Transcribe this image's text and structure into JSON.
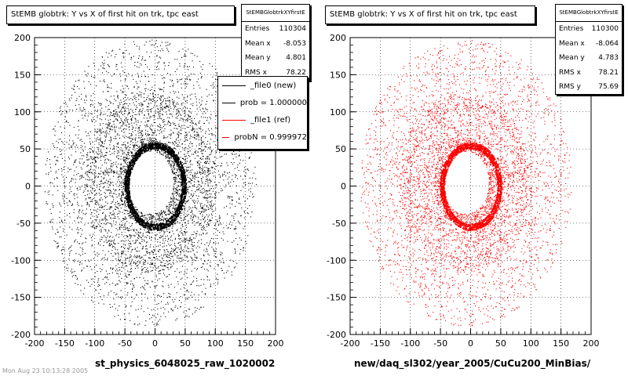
{
  "panels": [
    {
      "title": "StEMB globtrk: Y vs X of first hit on trk, tpc east",
      "stats": {
        "name": "StEMBGlobtrkXYfirstE",
        "rows": [
          {
            "label": "Entries",
            "value": "110304"
          },
          {
            "label": "Mean x",
            "value": "-8.053"
          },
          {
            "label": "Mean y",
            "value": "4.801"
          },
          {
            "label": "RMS x",
            "value": "78.22"
          }
        ]
      },
      "legend": [
        {
          "label": "_file0 (new)",
          "color": "#000000"
        },
        {
          "label": "prob = 1.000000",
          "color": "#000000"
        },
        {
          "label": "_file1 (ref)",
          "color": "#ff0000"
        },
        {
          "label": "probN = 0.999972",
          "color": "#ff0000"
        }
      ],
      "xaxis_title": "st_physics_6048025_raw_1020002",
      "color": "#000000"
    },
    {
      "title": "StEMB globtrk: Y vs X of first hit on trk, tpc east",
      "stats": {
        "name": "StEMBGlobtrkXYfirstE",
        "rows": [
          {
            "label": "Entries",
            "value": "110300"
          },
          {
            "label": "Mean x",
            "value": "-8.064"
          },
          {
            "label": "Mean y",
            "value": "4.783"
          },
          {
            "label": "RMS x",
            "value": "78.21"
          },
          {
            "label": "RMS y",
            "value": "75.69"
          }
        ]
      },
      "xaxis_title": "new/daq_sl302/year_2005/CuCu200_MinBias/",
      "color": "#ff0000"
    }
  ],
  "footer_text": "Mon Aug 23 10:13:28 2005",
  "chart_data": [
    {
      "type": "scatter",
      "title": "StEMB globtrk: Y vs X of first hit on trk, tpc east",
      "xlabel": "st_physics_6048025_raw_1020002",
      "ylabel": "",
      "xlim": [
        -200,
        200
      ],
      "ylim": [
        -200,
        200
      ],
      "xticks": [
        -200,
        -150,
        -100,
        -50,
        0,
        50,
        100,
        150,
        200
      ],
      "yticks": [
        -200,
        -150,
        -100,
        -50,
        0,
        50,
        100,
        150,
        200
      ],
      "grid": true,
      "series": [
        {
          "name": "_file0 (new)",
          "color": "#000000"
        }
      ]
    },
    {
      "type": "scatter",
      "title": "StEMB globtrk: Y vs X of first hit on trk, tpc east",
      "xlabel": "new/daq_sl302/year_2005/CuCu200_MinBias/",
      "ylabel": "",
      "xlim": [
        -200,
        200
      ],
      "ylim": [
        -200,
        200
      ],
      "xticks": [
        -200,
        -150,
        -100,
        -50,
        0,
        50,
        100,
        150,
        200
      ],
      "yticks": [
        -200,
        -150,
        -100,
        -50,
        0,
        50,
        100,
        150,
        200
      ],
      "grid": true,
      "series": [
        {
          "name": "_file1 (ref)",
          "color": "#ff0000"
        }
      ]
    }
  ]
}
